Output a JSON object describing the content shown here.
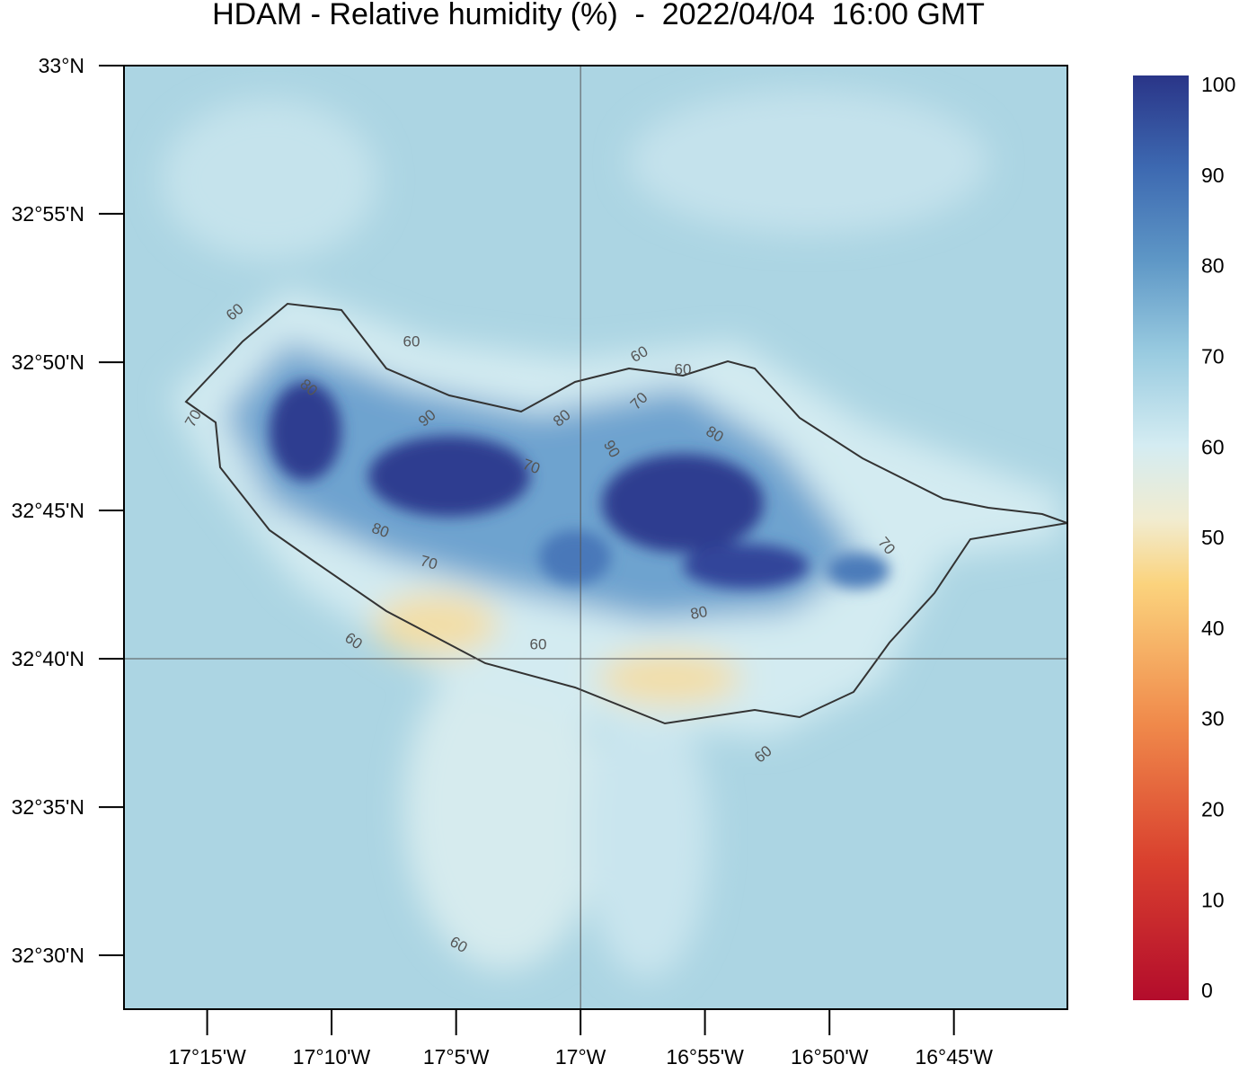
{
  "map": {
    "title": "HDAM - Relative humidity (%)  -  2022/04/04  16:00 GMT",
    "lat_range": [
      32.4697,
      33
    ],
    "lon_range": [
      -17.3057,
      -16.674
    ],
    "lat_ticks": [
      {
        "value": 33,
        "label": "33°N"
      },
      {
        "value": 32.9167,
        "label": "32°55'N"
      },
      {
        "value": 32.8333,
        "label": "32°50'N"
      },
      {
        "value": 32.75,
        "label": "32°45'N"
      },
      {
        "value": 32.6667,
        "label": "32°40'N"
      },
      {
        "value": 32.5833,
        "label": "32°35'N"
      },
      {
        "value": 32.5,
        "label": "32°30'N"
      }
    ],
    "lon_ticks": [
      {
        "value": -17.25,
        "label": "17°15'W"
      },
      {
        "value": -17.1667,
        "label": "17°10'W"
      },
      {
        "value": -17.0833,
        "label": "17°5'W"
      },
      {
        "value": -17,
        "label": "17°W"
      },
      {
        "value": -16.9167,
        "label": "16°55'W"
      },
      {
        "value": -16.8333,
        "label": "16°50'W"
      },
      {
        "value": -16.75,
        "label": "16°45'W"
      }
    ],
    "graticule": [
      {
        "lon": -17
      },
      {
        "lat": 32.6667
      }
    ],
    "colorbar": {
      "range": [
        0,
        100
      ],
      "ticks": [
        0,
        10,
        20,
        30,
        40,
        50,
        60,
        70,
        80,
        90,
        100
      ]
    },
    "contour_labels": [
      "60",
      "60",
      "60",
      "60",
      "80",
      "70",
      "90",
      "80",
      "70",
      "90",
      "80",
      "70",
      "80",
      "70",
      "70",
      "80",
      "60",
      "60",
      "60",
      "60"
    ]
  }
}
